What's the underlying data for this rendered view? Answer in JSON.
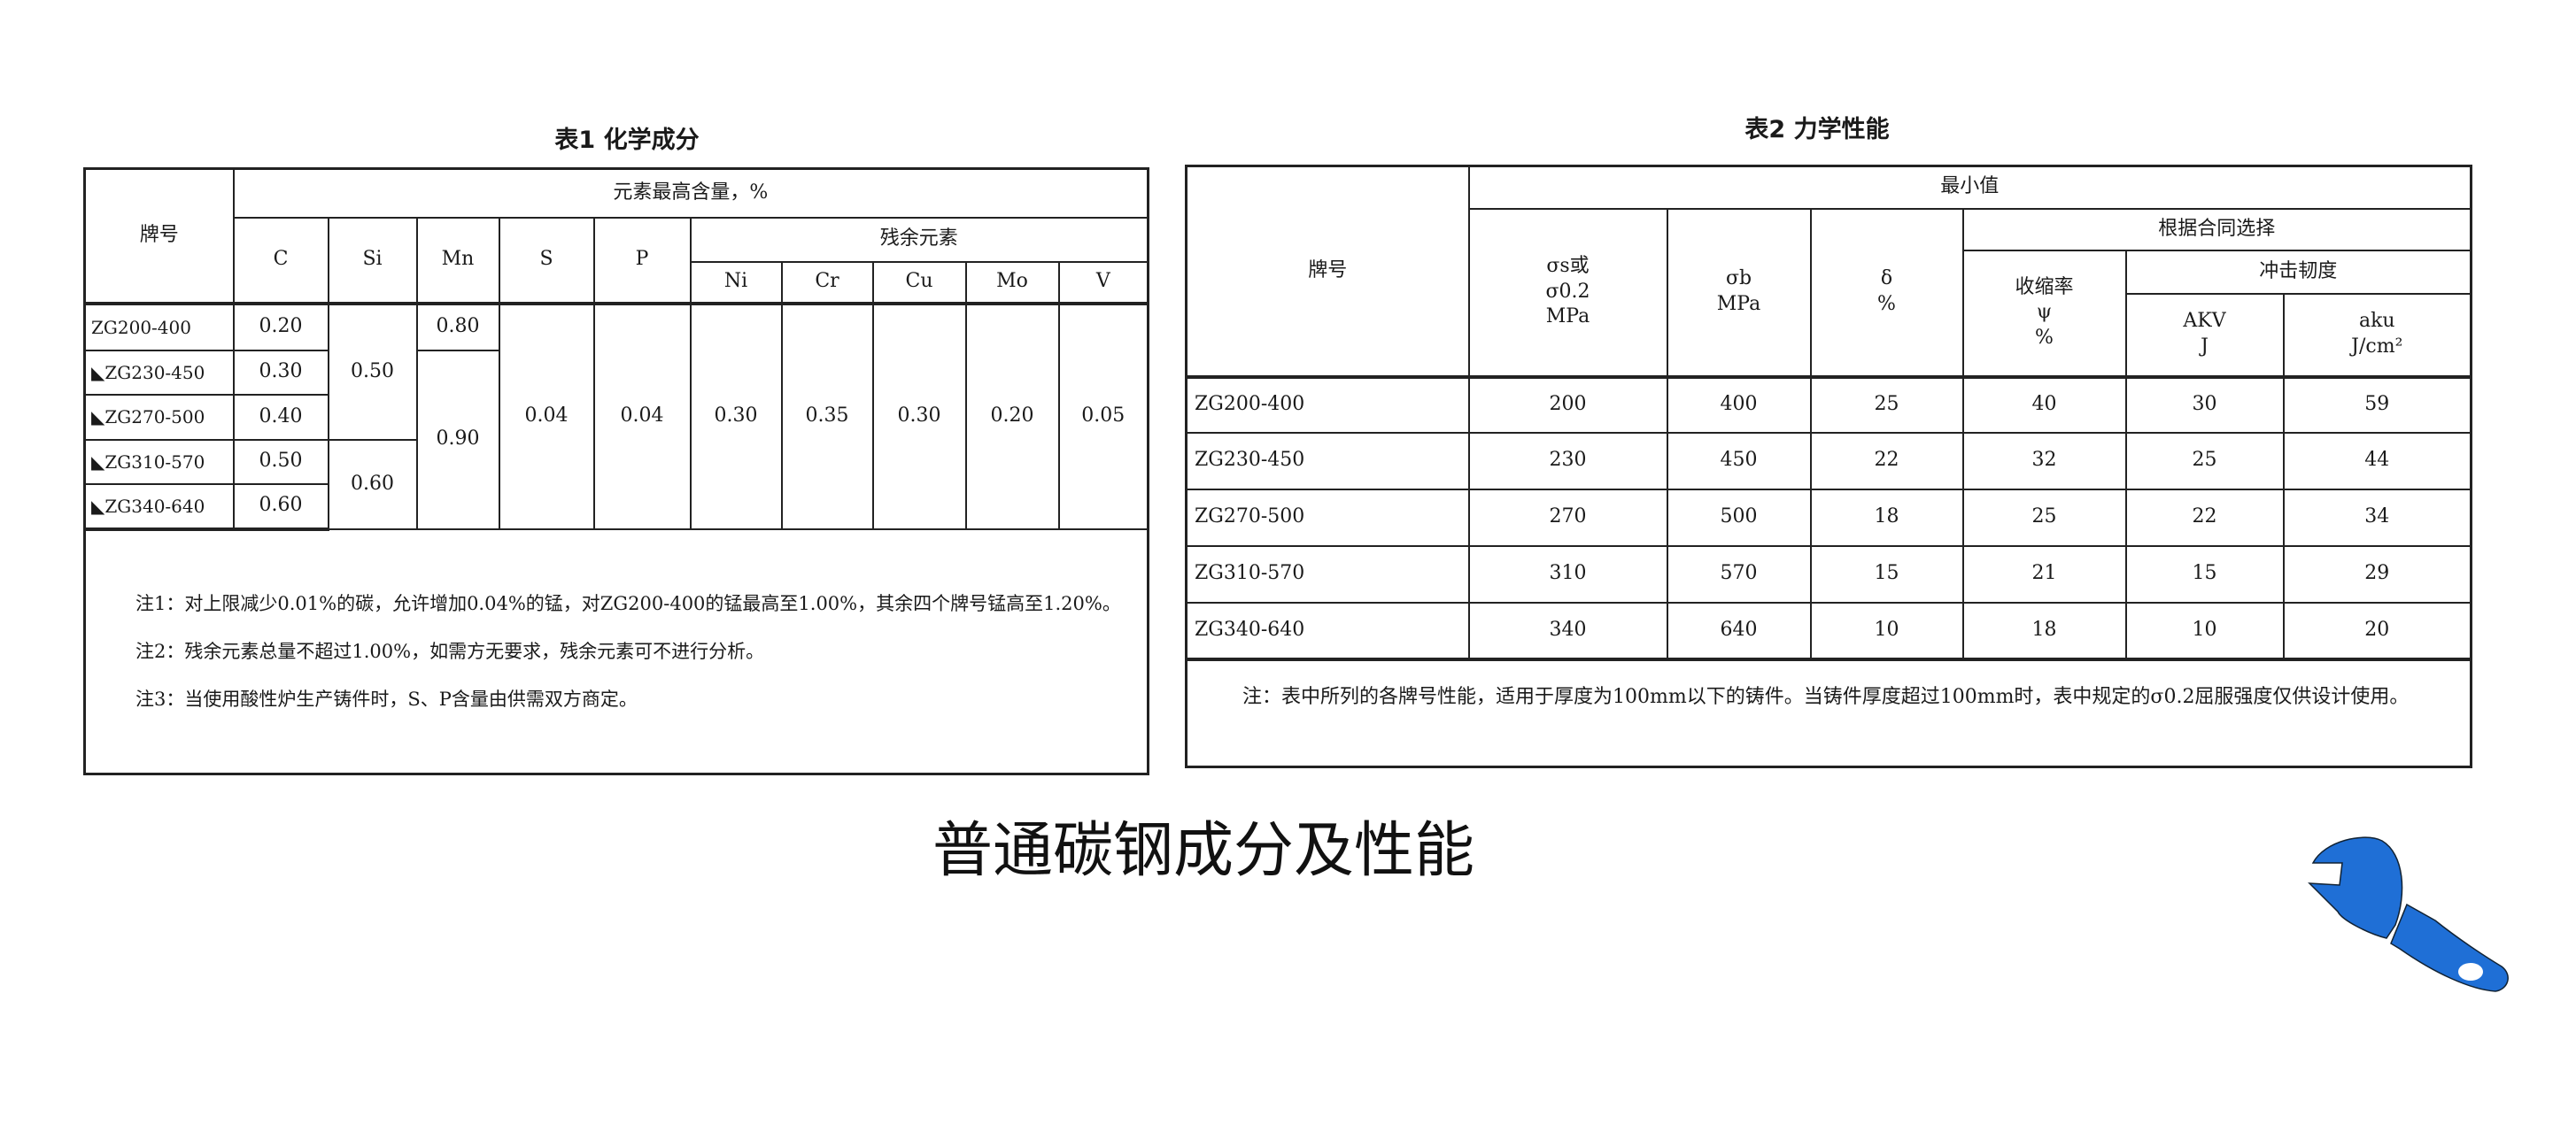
{
  "table1": {
    "title": "表1  化学成分",
    "header_grade": "牌号",
    "header_group": "元素最高含量，%",
    "elements": [
      "C",
      "Si",
      "Mn",
      "S",
      "P"
    ],
    "residual_group": "残余元素",
    "residual_elements": [
      "Ni",
      "Cr",
      "Cu",
      "Mo",
      "V"
    ],
    "grades": [
      "ZG200-400",
      "◣ZG230-450",
      "◣ZG270-500",
      "◣ZG310-570",
      "◣ZG340-640"
    ],
    "C": [
      "0.20",
      "0.30",
      "0.40",
      "0.50",
      "0.60"
    ],
    "Si": [
      "0.50",
      "0.60"
    ],
    "Mn": [
      "0.80",
      "0.90"
    ],
    "S": "0.04",
    "P": "0.04",
    "residual_values": [
      "0.30",
      "0.35",
      "0.30",
      "0.20",
      "0.05"
    ],
    "notes": [
      "注1：对上限减少0.01%的碳，允许增加0.04%的锰，对ZG200-400的锰最高至1.00%，其余四个牌号锰高至1.20%。",
      "注2：残余元素总量不超过1.00%，如需方无要求，残余元素可不进行分析。",
      "注3：当使用酸性炉生产铸件时，S、P含量由供需双方商定。"
    ]
  },
  "table2": {
    "title": "表2  力学性能",
    "header_grade": "牌号",
    "header_min": "最小值",
    "sigma_s": [
      "σs或",
      "σ0.2",
      "MPa"
    ],
    "sigma_b": [
      "σb",
      "MPa"
    ],
    "delta": [
      "δ",
      "%"
    ],
    "contract_group": "根据合同选择",
    "psi": [
      "收缩率",
      "ψ",
      "%"
    ],
    "impact_group": "冲击韧度",
    "akv": [
      "AKV",
      "J"
    ],
    "aku": [
      "aku",
      "J/cm²"
    ],
    "rows": [
      {
        "grade": "ZG200-400",
        "values": [
          "200",
          "400",
          "25",
          "40",
          "30",
          "59"
        ]
      },
      {
        "grade": "ZG230-450",
        "values": [
          "230",
          "450",
          "22",
          "32",
          "25",
          "44"
        ]
      },
      {
        "grade": "ZG270-500",
        "values": [
          "270",
          "500",
          "18",
          "25",
          "22",
          "34"
        ]
      },
      {
        "grade": "ZG310-570",
        "values": [
          "310",
          "570",
          "15",
          "21",
          "15",
          "29"
        ]
      },
      {
        "grade": "ZG340-640",
        "values": [
          "340",
          "640",
          "10",
          "18",
          "10",
          "20"
        ]
      }
    ],
    "note": "注：表中所列的各牌号性能，适用于厚度为100mm以下的铸件。当铸件厚度超过100mm时，表中规定的σ0.2屈服强度仅供设计使用。"
  },
  "main_title": "普通碳钢成分及性能",
  "icon": {
    "name": "wrench-icon",
    "color": "#1f6fd6"
  }
}
